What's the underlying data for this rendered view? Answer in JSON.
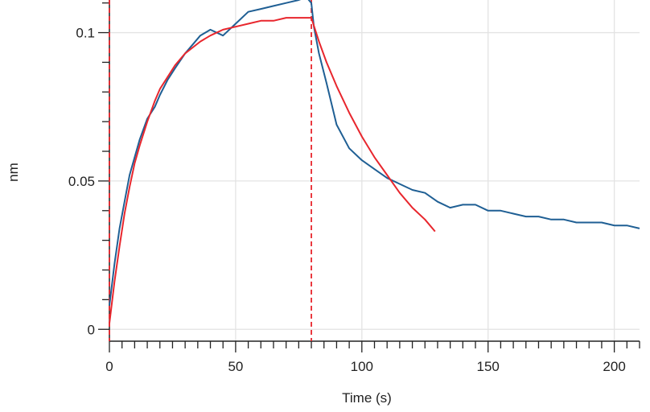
{
  "chart_data": {
    "type": "line",
    "xlabel": "Time (s)",
    "ylabel": "nm",
    "xlim": [
      0,
      210
    ],
    "ylim": [
      -0.004,
      0.111
    ],
    "x_ticks": [
      0,
      50,
      100,
      150,
      200
    ],
    "x_tick_labels": [
      "0",
      "50",
      "100",
      "150",
      "200"
    ],
    "y_ticks": [
      0,
      0.05,
      0.1
    ],
    "y_tick_labels": [
      "0",
      "0.05",
      "0.1"
    ],
    "grid": true,
    "markers": [
      {
        "x": 0,
        "style": "dashed",
        "color": "#e8262d"
      },
      {
        "x": 80,
        "style": "dashed",
        "color": "#e8262d"
      }
    ],
    "series": [
      {
        "color": "#1f5f94",
        "x": [
          0,
          2,
          4,
          6,
          8,
          10,
          12,
          15,
          18,
          20,
          23,
          26,
          30,
          33,
          36,
          40,
          45,
          50,
          55,
          60,
          65,
          70,
          75,
          78,
          80,
          81,
          83,
          86,
          90,
          95,
          100,
          105,
          110,
          115,
          120,
          125,
          130,
          135,
          140,
          145,
          150,
          155,
          160,
          165,
          170,
          175,
          180,
          185,
          190,
          195,
          200,
          205,
          210
        ],
        "y": [
          0.008,
          0.022,
          0.034,
          0.043,
          0.052,
          0.058,
          0.064,
          0.071,
          0.075,
          0.079,
          0.084,
          0.088,
          0.093,
          0.096,
          0.099,
          0.101,
          0.099,
          0.103,
          0.107,
          0.108,
          0.109,
          0.11,
          0.111,
          0.112,
          0.11,
          0.102,
          0.093,
          0.083,
          0.069,
          0.061,
          0.057,
          0.054,
          0.051,
          0.049,
          0.047,
          0.046,
          0.043,
          0.041,
          0.042,
          0.042,
          0.04,
          0.04,
          0.039,
          0.038,
          0.038,
          0.037,
          0.037,
          0.036,
          0.036,
          0.036,
          0.035,
          0.035,
          0.034
        ]
      },
      {
        "color": "#e8262d",
        "x": [
          0,
          2,
          4,
          6,
          8,
          10,
          12,
          15,
          18,
          20,
          23,
          26,
          30,
          33,
          36,
          40,
          45,
          50,
          55,
          60,
          65,
          70,
          75,
          80,
          83,
          86,
          90,
          95,
          100,
          105,
          110,
          115,
          120,
          125,
          129
        ],
        "y": [
          0.002,
          0.016,
          0.028,
          0.039,
          0.048,
          0.056,
          0.062,
          0.07,
          0.077,
          0.081,
          0.085,
          0.089,
          0.093,
          0.095,
          0.097,
          0.099,
          0.101,
          0.102,
          0.103,
          0.104,
          0.104,
          0.105,
          0.105,
          0.105,
          0.097,
          0.09,
          0.082,
          0.073,
          0.065,
          0.058,
          0.052,
          0.046,
          0.041,
          0.037,
          0.033
        ]
      }
    ]
  }
}
